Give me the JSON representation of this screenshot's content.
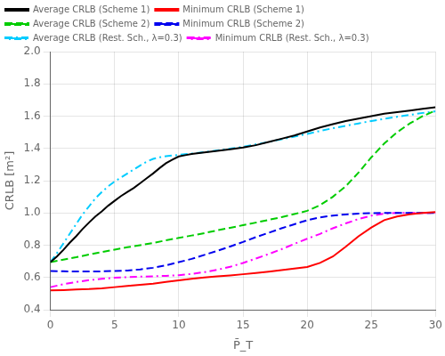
{
  "chart_data": {
    "type": "line",
    "title": "",
    "x_label": "P̄_T",
    "y_label": "CRLB [m²]",
    "xlim": [
      0,
      30
    ],
    "ylim": [
      0.4,
      2.0
    ],
    "xticks": [
      0,
      5,
      10,
      15,
      20,
      25,
      30
    ],
    "yticks": [
      0.4,
      0.6,
      0.8,
      {
        "value": 1.0,
        "label": "1.0"
      },
      1.2,
      1.4,
      1.6,
      1.8,
      {
        "value": 2.0,
        "label": "2.0"
      }
    ],
    "grid": true,
    "legend": "upper left",
    "series": [
      {
        "name": "Average CRLB (Scheme 1)",
        "color": "#000000",
        "line_style": "solid",
        "x": [
          0,
          0.5,
          1,
          1.5,
          2,
          2.5,
          3,
          3.5,
          4,
          4.5,
          5,
          5.5,
          6,
          6.5,
          7,
          7.5,
          8,
          8.5,
          9,
          9.5,
          10,
          10.5,
          11,
          12,
          13,
          14,
          15,
          16,
          17,
          18,
          19,
          20,
          21,
          22,
          23,
          24,
          25,
          26,
          27,
          28,
          29,
          30
        ],
        "values": [
          0.695,
          0.73,
          0.77,
          0.815,
          0.855,
          0.9,
          0.94,
          0.978,
          1.01,
          1.045,
          1.075,
          1.105,
          1.13,
          1.155,
          1.185,
          1.215,
          1.245,
          1.278,
          1.308,
          1.33,
          1.35,
          1.358,
          1.365,
          1.375,
          1.385,
          1.395,
          1.405,
          1.42,
          1.44,
          1.46,
          1.48,
          1.505,
          1.53,
          1.55,
          1.57,
          1.585,
          1.6,
          1.615,
          1.625,
          1.635,
          1.645,
          1.655
        ]
      },
      {
        "name": "Minimum CRLB (Scheme 1)",
        "color": "#ff0000",
        "line_style": "solid",
        "x": [
          0,
          1,
          2,
          3,
          4,
          5,
          6,
          7,
          8,
          9,
          10,
          11,
          12,
          13,
          14,
          15,
          16,
          17,
          18,
          19,
          20,
          21,
          22,
          23,
          24,
          25,
          26,
          27,
          28,
          29,
          30
        ],
        "values": [
          0.52,
          0.522,
          0.525,
          0.528,
          0.533,
          0.54,
          0.548,
          0.555,
          0.562,
          0.572,
          0.582,
          0.592,
          0.6,
          0.607,
          0.613,
          0.62,
          0.628,
          0.636,
          0.645,
          0.655,
          0.665,
          0.69,
          0.73,
          0.79,
          0.855,
          0.91,
          0.955,
          0.978,
          0.992,
          1.0,
          1.005
        ]
      },
      {
        "name": "Average CRLB (Scheme 2)",
        "color": "#00cc00",
        "line_style": "dashed",
        "x": [
          0,
          1,
          2,
          3,
          4,
          5,
          6,
          7,
          8,
          9,
          10,
          11,
          12,
          13,
          14,
          15,
          16,
          17,
          18,
          19,
          20,
          21,
          22,
          23,
          24,
          25,
          26,
          27,
          28,
          29,
          30
        ],
        "values": [
          0.695,
          0.71,
          0.725,
          0.742,
          0.758,
          0.773,
          0.787,
          0.8,
          0.814,
          0.83,
          0.845,
          0.86,
          0.875,
          0.892,
          0.908,
          0.924,
          0.94,
          0.957,
          0.974,
          0.993,
          1.013,
          1.048,
          1.1,
          1.165,
          1.25,
          1.345,
          1.43,
          1.5,
          1.555,
          1.6,
          1.635
        ]
      },
      {
        "name": "Minimum CRLB (Scheme 2)",
        "color": "#0000ee",
        "line_style": "dashed",
        "x": [
          0,
          1,
          2,
          3,
          4,
          5,
          6,
          7,
          8,
          9,
          10,
          11,
          12,
          13,
          14,
          15,
          16,
          17,
          18,
          19,
          20,
          21,
          22,
          23,
          24,
          25,
          26,
          27,
          28,
          29,
          30
        ],
        "values": [
          0.64,
          0.638,
          0.637,
          0.637,
          0.638,
          0.64,
          0.643,
          0.65,
          0.66,
          0.675,
          0.695,
          0.715,
          0.74,
          0.765,
          0.792,
          0.82,
          0.85,
          0.877,
          0.905,
          0.93,
          0.955,
          0.972,
          0.984,
          0.991,
          0.996,
          0.999,
          1.0,
          1.0,
          1.0,
          1.0,
          1.0
        ]
      },
      {
        "name": "Average CRLB (Rest. Sch., λ=0.3)",
        "color": "#00ccff",
        "line_style": "dashdot",
        "x": [
          0,
          0.5,
          1,
          1.5,
          2,
          2.5,
          3,
          3.5,
          4,
          4.5,
          5,
          5.5,
          6,
          6.5,
          7,
          7.5,
          8,
          8.5,
          9,
          9.5,
          10,
          11,
          12,
          13,
          14,
          15,
          16,
          17,
          18,
          19,
          20,
          21,
          22,
          23,
          24,
          25,
          26,
          27,
          28,
          29,
          30
        ],
        "values": [
          0.695,
          0.75,
          0.81,
          0.87,
          0.93,
          0.99,
          1.04,
          1.09,
          1.13,
          1.165,
          1.195,
          1.22,
          1.245,
          1.27,
          1.295,
          1.318,
          1.335,
          1.345,
          1.352,
          1.356,
          1.36,
          1.368,
          1.377,
          1.387,
          1.398,
          1.41,
          1.425,
          1.44,
          1.457,
          1.473,
          1.49,
          1.508,
          1.525,
          1.54,
          1.555,
          1.57,
          1.583,
          1.596,
          1.608,
          1.62,
          1.63
        ]
      },
      {
        "name": "Minimum CRLB (Rest. Sch., λ=0.3)",
        "color": "#ff00ff",
        "line_style": "dashdot",
        "x": [
          0,
          1,
          2,
          3,
          4,
          5,
          6,
          7,
          8,
          9,
          10,
          11,
          12,
          13,
          14,
          15,
          16,
          17,
          18,
          19,
          20,
          21,
          22,
          23,
          24,
          25,
          26,
          27,
          28,
          29,
          30
        ],
        "values": [
          0.54,
          0.558,
          0.572,
          0.583,
          0.592,
          0.598,
          0.602,
          0.605,
          0.607,
          0.61,
          0.614,
          0.622,
          0.633,
          0.648,
          0.666,
          0.69,
          0.717,
          0.745,
          0.775,
          0.808,
          0.84,
          0.87,
          0.905,
          0.935,
          0.962,
          0.983,
          0.995,
          1.0,
          1.0,
          1.0,
          1.0
        ]
      }
    ]
  }
}
